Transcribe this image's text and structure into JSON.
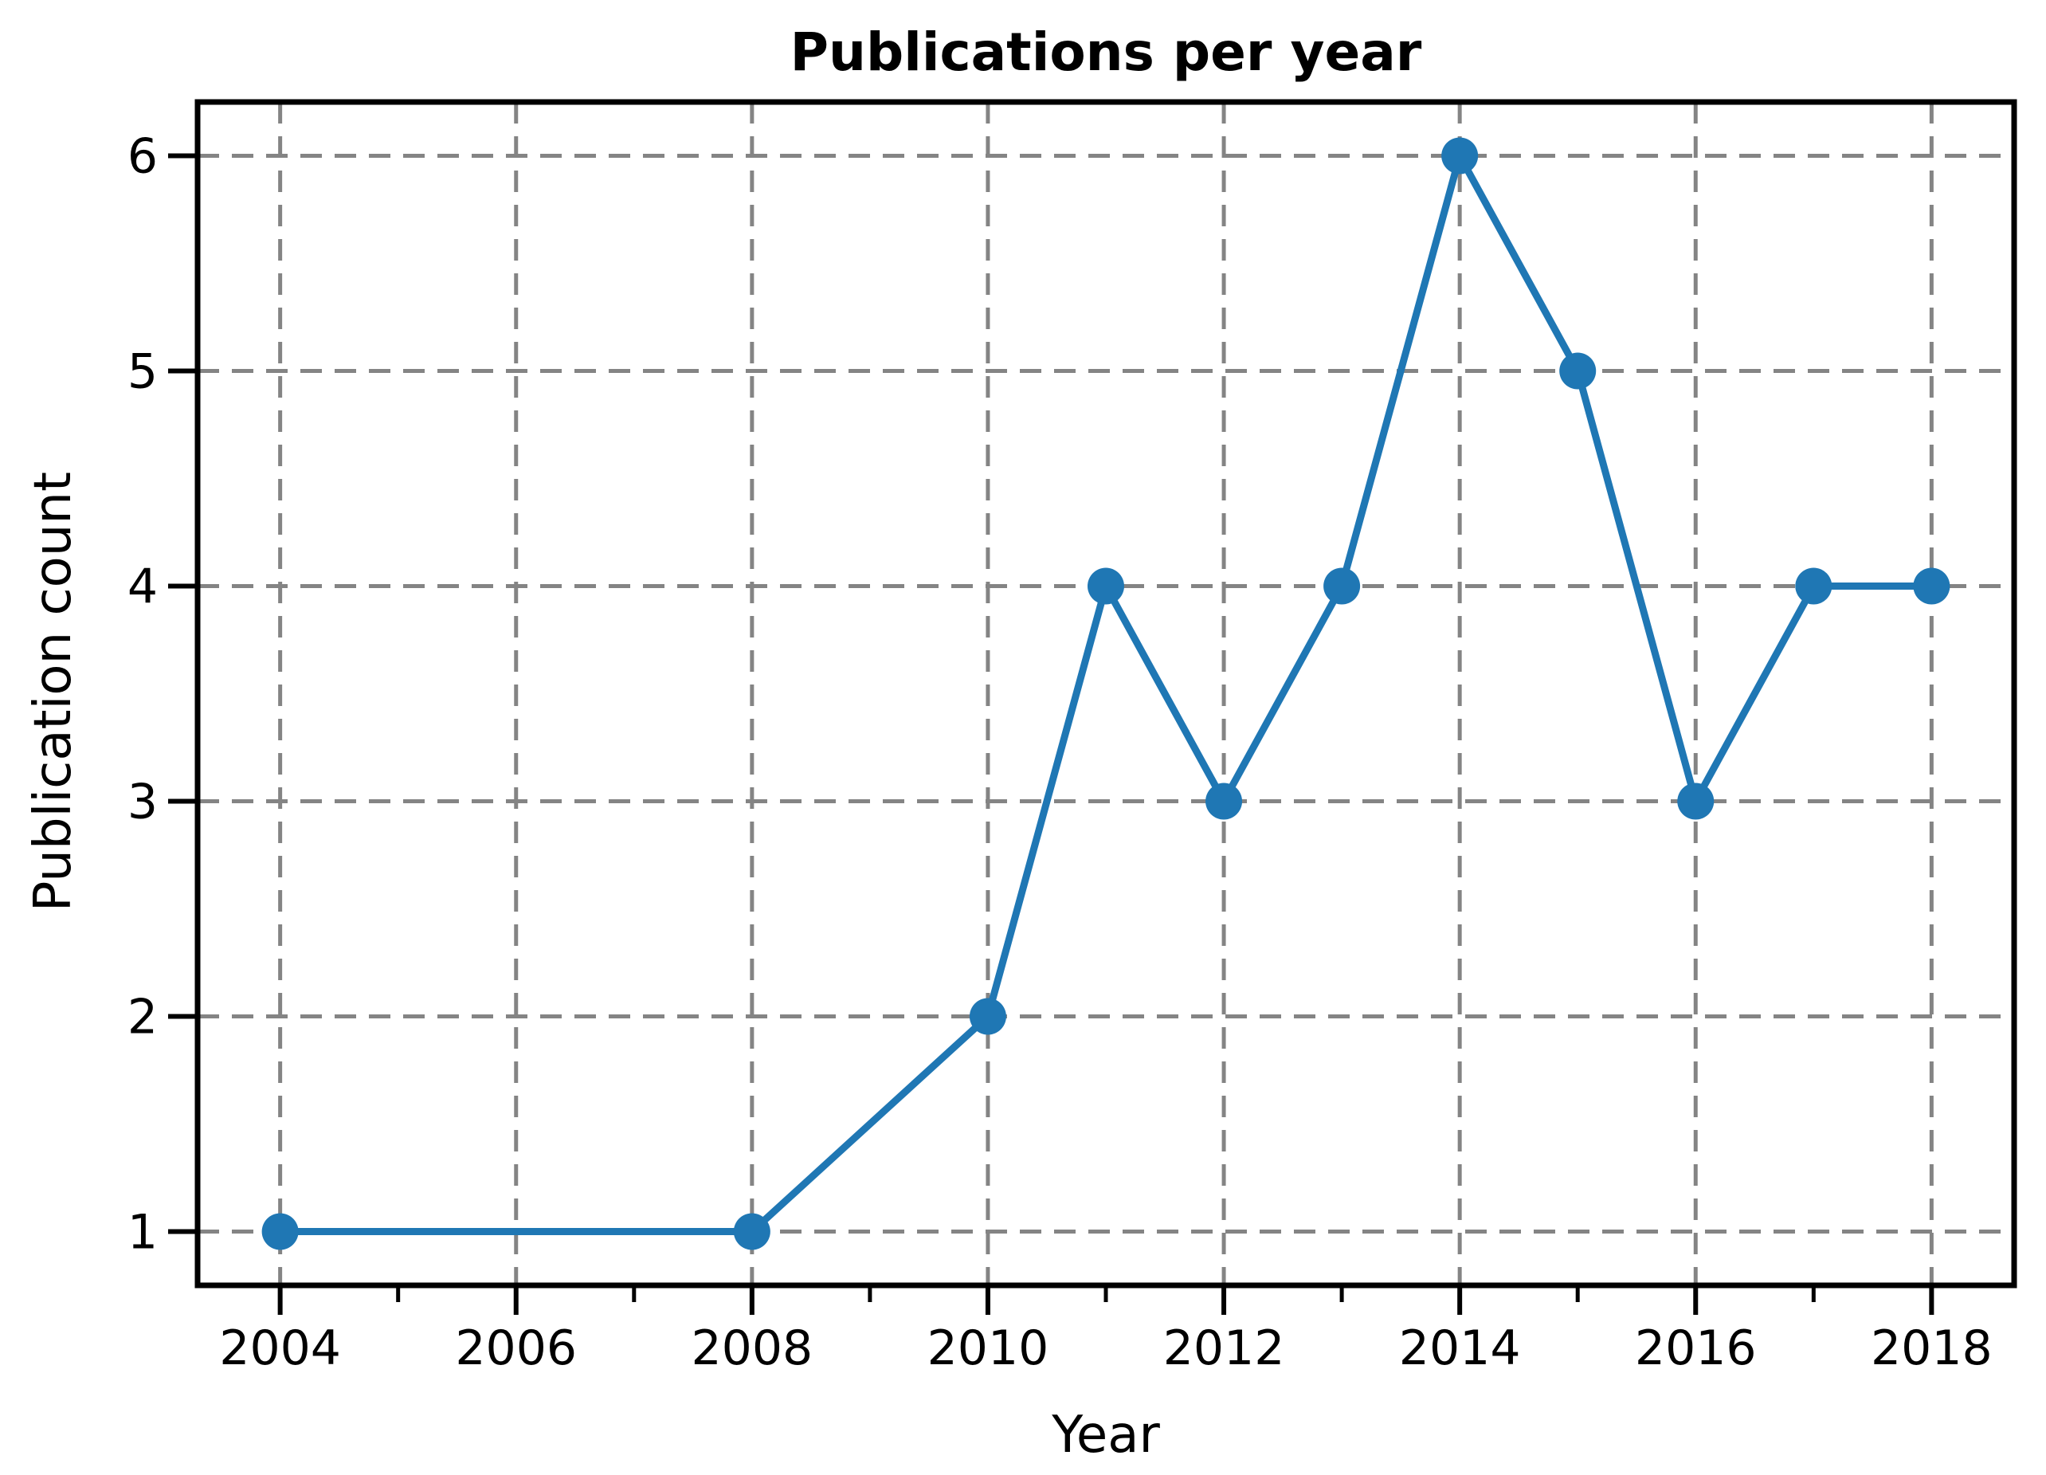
{
  "chart_data": {
    "type": "line",
    "title": "Publications per year",
    "xlabel": "Year",
    "ylabel": "Publication count",
    "x": [
      2004,
      2008,
      2010,
      2011,
      2012,
      2013,
      2014,
      2015,
      2016,
      2017,
      2018
    ],
    "y": [
      1,
      1,
      2,
      4,
      3,
      4,
      6,
      5,
      3,
      4,
      4
    ],
    "xlim": [
      2003.3,
      2018.7
    ],
    "ylim": [
      0.75,
      6.25
    ],
    "xticks_major": [
      2004,
      2006,
      2008,
      2010,
      2012,
      2014,
      2016,
      2018
    ],
    "xtick_labels": [
      "2004",
      "2006",
      "2008",
      "2010",
      "2012",
      "2014",
      "2016",
      "2018"
    ],
    "xticks_minor": [
      2005,
      2007,
      2009,
      2011,
      2013,
      2015,
      2017
    ],
    "yticks": [
      1,
      2,
      3,
      4,
      5,
      6
    ],
    "ytick_labels": [
      "1",
      "2",
      "3",
      "4",
      "5",
      "6"
    ],
    "grid": true,
    "grid_line_style": "dashed",
    "legend": null,
    "marker": "o",
    "line_color": "#1f77b4",
    "grid_color": "#848484",
    "axis_color": "#000000",
    "background_color": "#ffffff"
  }
}
